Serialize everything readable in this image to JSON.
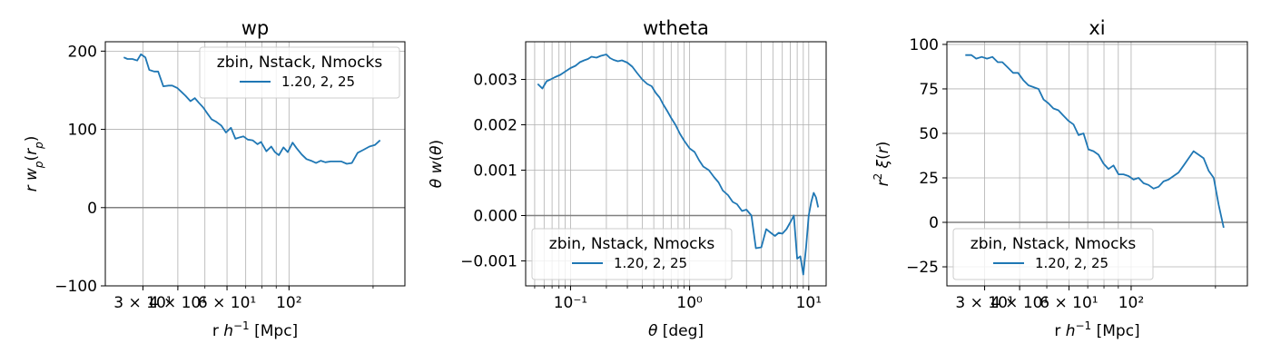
{
  "figure": {
    "colors": {
      "series": "#1f77b4",
      "zero_line": "#808080",
      "grid": "#b0b0b0"
    }
  },
  "chart_data": [
    {
      "type": "line",
      "title": "wp",
      "xlabel": "r h⁻¹ [Mpc]",
      "ylabel": "r w_p(r_p)",
      "xscale": "log",
      "xlim": [
        22,
        260
      ],
      "ylim": [
        -100,
        212
      ],
      "x_ticks": [
        30,
        40,
        60,
        100
      ],
      "x_tick_labels": [
        "3 × 10¹",
        "4 × 10¹",
        "6 × 10¹",
        "10²"
      ],
      "x_grid": [
        30,
        40,
        50,
        60,
        70,
        80,
        90,
        100,
        200
      ],
      "y_ticks": [
        -100,
        0,
        100,
        200
      ],
      "y_tick_labels": [
        "−100",
        "0",
        "100",
        "200"
      ],
      "grid": true,
      "zero_line": true,
      "legend": {
        "title": "zbin, Nstack, Nmocks",
        "entries": [
          "1.20, 2, 25"
        ],
        "placement": "upper right"
      },
      "series": [
        {
          "name": "1.20, 2, 25",
          "x": [
            25.6,
            26.4,
            27.5,
            28.6,
            29.5,
            30.6,
            31.6,
            32.9,
            34.0,
            35.5,
            37.1,
            38.2,
            39.8,
            41.2,
            42.6,
            44.4,
            46.0,
            47.6,
            49.3,
            51.1,
            52.8,
            54.7,
            57.2,
            59.5,
            62.0,
            64.3,
            66.9,
            68.7,
            71.2,
            74.1,
            77.2,
            79.4,
            83.0,
            86.4,
            89.0,
            92.0,
            95.5,
            99.0,
            103.0,
            106.5,
            111.0,
            115.5,
            120.0,
            125.0,
            130.0,
            135.0,
            141.0,
            147.0,
            154.0,
            161.0,
            168.0,
            176.0,
            185.0,
            194.0,
            203.0,
            212.0
          ],
          "y": [
            192,
            190,
            190,
            188,
            196,
            192,
            176,
            174,
            174,
            155,
            156,
            156,
            153,
            148,
            143,
            136,
            140,
            134,
            128,
            120,
            113,
            110,
            105,
            96,
            102,
            88,
            90,
            91,
            87,
            86,
            81,
            84,
            72,
            78,
            71,
            67,
            77,
            71,
            83,
            76,
            68,
            62,
            60,
            57,
            60,
            58,
            59,
            59,
            59,
            56,
            57,
            70,
            74,
            78,
            80,
            86
          ]
        }
      ]
    },
    {
      "type": "line",
      "title": "wtheta",
      "xlabel": "θ [deg]",
      "ylabel": "θ w(θ)",
      "xscale": "log",
      "xlim": [
        0.042,
        14
      ],
      "ylim": [
        -0.00155,
        0.00383
      ],
      "x_ticks": [
        0.1,
        1,
        10
      ],
      "x_tick_labels": [
        "10⁻¹",
        "10⁰",
        "10¹"
      ],
      "y_ticks": [
        -0.001,
        0.0,
        0.001,
        0.002,
        0.003
      ],
      "y_tick_labels": [
        "−0.001",
        "0.000",
        "0.001",
        "0.002",
        "0.003"
      ],
      "grid": true,
      "zero_line": true,
      "legend": {
        "title": "zbin, Nstack, Nmocks",
        "entries": [
          "1.20, 2, 25"
        ],
        "placement": "lower left"
      },
      "series": [
        {
          "name": "1.20, 2, 25",
          "x": [
            0.053,
            0.058,
            0.063,
            0.068,
            0.074,
            0.082,
            0.091,
            0.1,
            0.11,
            0.12,
            0.13,
            0.14,
            0.15,
            0.165,
            0.18,
            0.2,
            0.215,
            0.23,
            0.25,
            0.27,
            0.3,
            0.33,
            0.36,
            0.4,
            0.44,
            0.48,
            0.52,
            0.56,
            0.6,
            0.65,
            0.7,
            0.76,
            0.83,
            0.9,
            1.0,
            1.1,
            1.2,
            1.3,
            1.45,
            1.6,
            1.75,
            1.9,
            2.1,
            2.3,
            2.5,
            2.75,
            3.0,
            3.3,
            3.6,
            4.0,
            4.4,
            4.8,
            5.2,
            5.6,
            6.0,
            6.5,
            7.0,
            7.5,
            8.0,
            8.5,
            9.0,
            9.5,
            10.0,
            10.5,
            11.0,
            11.5,
            12.0
          ],
          "y": [
            0.0029,
            0.0028,
            0.00296,
            0.003,
            0.00305,
            0.0031,
            0.00318,
            0.00325,
            0.0033,
            0.00338,
            0.00342,
            0.00345,
            0.0035,
            0.00348,
            0.00352,
            0.00355,
            0.00347,
            0.00343,
            0.0034,
            0.00342,
            0.00337,
            0.00328,
            0.00315,
            0.003,
            0.0029,
            0.00285,
            0.0027,
            0.0026,
            0.00245,
            0.0023,
            0.00215,
            0.002,
            0.0018,
            0.00165,
            0.00148,
            0.0014,
            0.00122,
            0.00108,
            0.001,
            0.00085,
            0.00073,
            0.00055,
            0.00045,
            0.0003,
            0.00025,
            0.0001,
            0.00013,
            0.0,
            -0.00072,
            -0.0007,
            -0.0003,
            -0.00038,
            -0.00045,
            -0.00038,
            -0.0004,
            -0.0003,
            -0.00015,
            0.0,
            -0.00095,
            -0.0009,
            -0.0013,
            -0.0007,
            0.0,
            0.0003,
            0.0005,
            0.0004,
            0.00018
          ]
        }
      ]
    },
    {
      "type": "line",
      "title": "xi",
      "xlabel": "r h⁻¹ [Mpc]",
      "ylabel": "r² ξ(r)",
      "xscale": "log",
      "xlim": [
        22,
        260
      ],
      "ylim": [
        -35.7,
        101.5
      ],
      "x_ticks": [
        30,
        40,
        60,
        100
      ],
      "x_tick_labels": [
        "3 × 10¹",
        "4 × 10¹",
        "6 × 10¹",
        "10²"
      ],
      "x_grid": [
        30,
        40,
        50,
        60,
        70,
        80,
        90,
        100,
        200
      ],
      "y_ticks": [
        -25,
        0,
        25,
        50,
        75,
        100
      ],
      "y_tick_labels": [
        "−25",
        "0",
        "25",
        "50",
        "75",
        "100"
      ],
      "grid": true,
      "zero_line": true,
      "legend": {
        "title": "zbin, Nstack, Nmocks",
        "entries": [
          "1.20, 2, 25"
        ],
        "placement": "lower left"
      },
      "series": [
        {
          "name": "1.20, 2, 25",
          "x": [
            25.6,
            26.9,
            28.0,
            29.3,
            30.6,
            32.0,
            33.4,
            34.7,
            36.3,
            37.9,
            39.5,
            41.2,
            43.0,
            44.8,
            46.7,
            48.7,
            50.6,
            52.8,
            55.0,
            57.3,
            59.8,
            62.3,
            64.9,
            67.6,
            70.4,
            73.4,
            76.5,
            79.7,
            83.0,
            86.5,
            90.1,
            93.9,
            97.9,
            102.0,
            106.3,
            110.7,
            115.4,
            120.2,
            125.3,
            130.5,
            136.0,
            141.7,
            147.7,
            154.0,
            160.4,
            167.1,
            174.2,
            181.5,
            189.1,
            197.1,
            205.3,
            214.0
          ],
          "y": [
            94,
            94,
            92,
            93,
            92,
            93,
            90,
            90,
            87,
            84,
            84,
            80,
            77,
            76,
            75,
            69,
            67,
            64,
            63,
            60,
            57,
            55,
            49,
            50,
            41,
            40,
            38,
            33,
            30,
            32,
            27,
            27,
            26,
            24,
            25,
            22,
            21,
            19,
            20,
            23,
            24,
            26,
            28,
            32,
            36,
            40,
            38,
            36,
            29,
            25,
            10,
            -3
          ]
        }
      ]
    }
  ]
}
